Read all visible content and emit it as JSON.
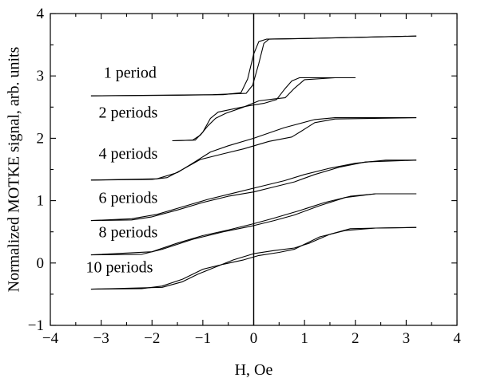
{
  "chart_data": {
    "type": "line",
    "xlabel": "H, Oe",
    "ylabel": "Normalized MOTKE signal, arb. units",
    "xlim": [
      -4,
      4
    ],
    "ylim": [
      -1,
      4
    ],
    "xticks": [
      -4,
      -3,
      -2,
      -1,
      0,
      1,
      2,
      3,
      4
    ],
    "xtick_labels": [
      "−4",
      "−3",
      "−2",
      "−1",
      "0",
      "1",
      "2",
      "3",
      "4"
    ],
    "yticks": [
      -1,
      0,
      1,
      2,
      3,
      4
    ],
    "ytick_labels": [
      "−1",
      "0",
      "1",
      "2",
      "3",
      "4"
    ],
    "grid": false,
    "legend": "labels beside curves",
    "zero_line_x": 0,
    "series": [
      {
        "name": "1 period",
        "label_at": [
          -2.95,
          2.97
        ],
        "branches": [
          [
            [
              -3.2,
              2.68
            ],
            [
              -1.5,
              2.69
            ],
            [
              -0.6,
              2.7
            ],
            [
              -0.25,
              2.73
            ],
            [
              -0.12,
              2.95
            ],
            [
              0.0,
              3.35
            ],
            [
              0.1,
              3.55
            ],
            [
              0.25,
              3.59
            ],
            [
              1.0,
              3.6
            ],
            [
              3.2,
              3.64
            ]
          ],
          [
            [
              3.2,
              3.64
            ],
            [
              1.0,
              3.6
            ],
            [
              0.3,
              3.59
            ],
            [
              0.2,
              3.52
            ],
            [
              0.1,
              3.2
            ],
            [
              -0.02,
              2.85
            ],
            [
              -0.15,
              2.72
            ],
            [
              -0.8,
              2.7
            ],
            [
              -3.2,
              2.68
            ]
          ]
        ]
      },
      {
        "name": "2 periods",
        "label_at": [
          -3.05,
          2.33
        ],
        "branches": [
          [
            [
              -1.6,
              1.96
            ],
            [
              -1.15,
              1.97
            ],
            [
              -1.0,
              2.1
            ],
            [
              -0.85,
              2.32
            ],
            [
              -0.7,
              2.42
            ],
            [
              -0.4,
              2.47
            ],
            [
              -0.1,
              2.52
            ],
            [
              0.2,
              2.56
            ],
            [
              0.45,
              2.62
            ],
            [
              0.6,
              2.78
            ],
            [
              0.75,
              2.92
            ],
            [
              0.9,
              2.97
            ],
            [
              2.0,
              2.97
            ]
          ],
          [
            [
              2.0,
              2.97
            ],
            [
              1.6,
              2.97
            ],
            [
              1.0,
              2.94
            ],
            [
              0.8,
              2.8
            ],
            [
              0.62,
              2.65
            ],
            [
              0.4,
              2.63
            ],
            [
              0.1,
              2.6
            ],
            [
              -0.2,
              2.5
            ],
            [
              -0.55,
              2.4
            ],
            [
              -0.75,
              2.32
            ],
            [
              -0.9,
              2.2
            ],
            [
              -1.05,
              2.05
            ],
            [
              -1.2,
              1.97
            ],
            [
              -1.6,
              1.96
            ]
          ]
        ]
      },
      {
        "name": "4 periods",
        "label_at": [
          -3.05,
          1.67
        ],
        "branches": [
          [
            [
              -3.2,
              1.33
            ],
            [
              -2.0,
              1.34
            ],
            [
              -1.7,
              1.37
            ],
            [
              -1.4,
              1.5
            ],
            [
              -1.05,
              1.66
            ],
            [
              -0.6,
              1.75
            ],
            [
              -0.2,
              1.83
            ],
            [
              0.3,
              1.95
            ],
            [
              0.75,
              2.02
            ],
            [
              0.95,
              2.12
            ],
            [
              1.2,
              2.25
            ],
            [
              1.6,
              2.31
            ],
            [
              3.2,
              2.33
            ]
          ],
          [
            [
              3.2,
              2.33
            ],
            [
              2.2,
              2.33
            ],
            [
              1.6,
              2.33
            ],
            [
              1.2,
              2.3
            ],
            [
              0.6,
              2.17
            ],
            [
              0.0,
              2.0
            ],
            [
              -0.5,
              1.88
            ],
            [
              -0.85,
              1.78
            ],
            [
              -1.2,
              1.6
            ],
            [
              -1.5,
              1.45
            ],
            [
              -1.9,
              1.35
            ],
            [
              -3.2,
              1.33
            ]
          ]
        ]
      },
      {
        "name": "6 periods",
        "label_at": [
          -3.05,
          0.96
        ],
        "branches": [
          [
            [
              -3.2,
              0.68
            ],
            [
              -2.4,
              0.69
            ],
            [
              -2.0,
              0.74
            ],
            [
              -1.5,
              0.85
            ],
            [
              -1.0,
              0.97
            ],
            [
              -0.5,
              1.07
            ],
            [
              0.0,
              1.14
            ],
            [
              0.4,
              1.22
            ],
            [
              0.8,
              1.3
            ],
            [
              1.2,
              1.42
            ],
            [
              1.7,
              1.54
            ],
            [
              2.2,
              1.62
            ],
            [
              3.2,
              1.65
            ]
          ],
          [
            [
              3.2,
              1.65
            ],
            [
              2.6,
              1.65
            ],
            [
              2.0,
              1.6
            ],
            [
              1.5,
              1.52
            ],
            [
              1.0,
              1.42
            ],
            [
              0.6,
              1.32
            ],
            [
              0.1,
              1.22
            ],
            [
              -0.4,
              1.12
            ],
            [
              -0.9,
              1.02
            ],
            [
              -1.4,
              0.9
            ],
            [
              -1.9,
              0.78
            ],
            [
              -2.4,
              0.71
            ],
            [
              -3.2,
              0.68
            ]
          ]
        ]
      },
      {
        "name": "8 periods",
        "label_at": [
          -3.05,
          0.41
        ],
        "branches": [
          [
            [
              -3.2,
              0.13
            ],
            [
              -2.2,
              0.14
            ],
            [
              -1.8,
              0.22
            ],
            [
              -1.2,
              0.38
            ],
            [
              -0.6,
              0.5
            ],
            [
              0.0,
              0.6
            ],
            [
              0.4,
              0.68
            ],
            [
              0.8,
              0.77
            ],
            [
              1.3,
              0.92
            ],
            [
              1.8,
              1.05
            ],
            [
              2.4,
              1.11
            ],
            [
              3.2,
              1.11
            ]
          ],
          [
            [
              3.2,
              1.11
            ],
            [
              2.4,
              1.11
            ],
            [
              1.9,
              1.07
            ],
            [
              1.4,
              0.97
            ],
            [
              0.9,
              0.84
            ],
            [
              0.4,
              0.72
            ],
            [
              0.0,
              0.63
            ],
            [
              -0.5,
              0.53
            ],
            [
              -1.0,
              0.44
            ],
            [
              -1.5,
              0.32
            ],
            [
              -2.0,
              0.18
            ],
            [
              -3.2,
              0.13
            ]
          ]
        ]
      },
      {
        "name": "10 periods",
        "label_at": [
          -3.3,
          -0.15
        ],
        "branches": [
          [
            [
              -3.2,
              -0.42
            ],
            [
              -2.2,
              -0.41
            ],
            [
              -1.8,
              -0.37
            ],
            [
              -1.4,
              -0.26
            ],
            [
              -1.0,
              -0.1
            ],
            [
              -0.6,
              -0.02
            ],
            [
              -0.2,
              0.05
            ],
            [
              0.1,
              0.12
            ],
            [
              0.5,
              0.17
            ],
            [
              0.8,
              0.22
            ],
            [
              1.0,
              0.3
            ],
            [
              1.3,
              0.42
            ],
            [
              1.8,
              0.52
            ],
            [
              2.4,
              0.56
            ],
            [
              3.2,
              0.57
            ]
          ],
          [
            [
              3.2,
              0.57
            ],
            [
              2.4,
              0.56
            ],
            [
              1.9,
              0.55
            ],
            [
              1.5,
              0.46
            ],
            [
              1.1,
              0.32
            ],
            [
              0.8,
              0.24
            ],
            [
              0.4,
              0.2
            ],
            [
              0.0,
              0.15
            ],
            [
              -0.4,
              0.05
            ],
            [
              -0.8,
              -0.08
            ],
            [
              -1.1,
              -0.18
            ],
            [
              -1.4,
              -0.3
            ],
            [
              -1.8,
              -0.39
            ],
            [
              -3.2,
              -0.42
            ]
          ]
        ]
      }
    ]
  }
}
